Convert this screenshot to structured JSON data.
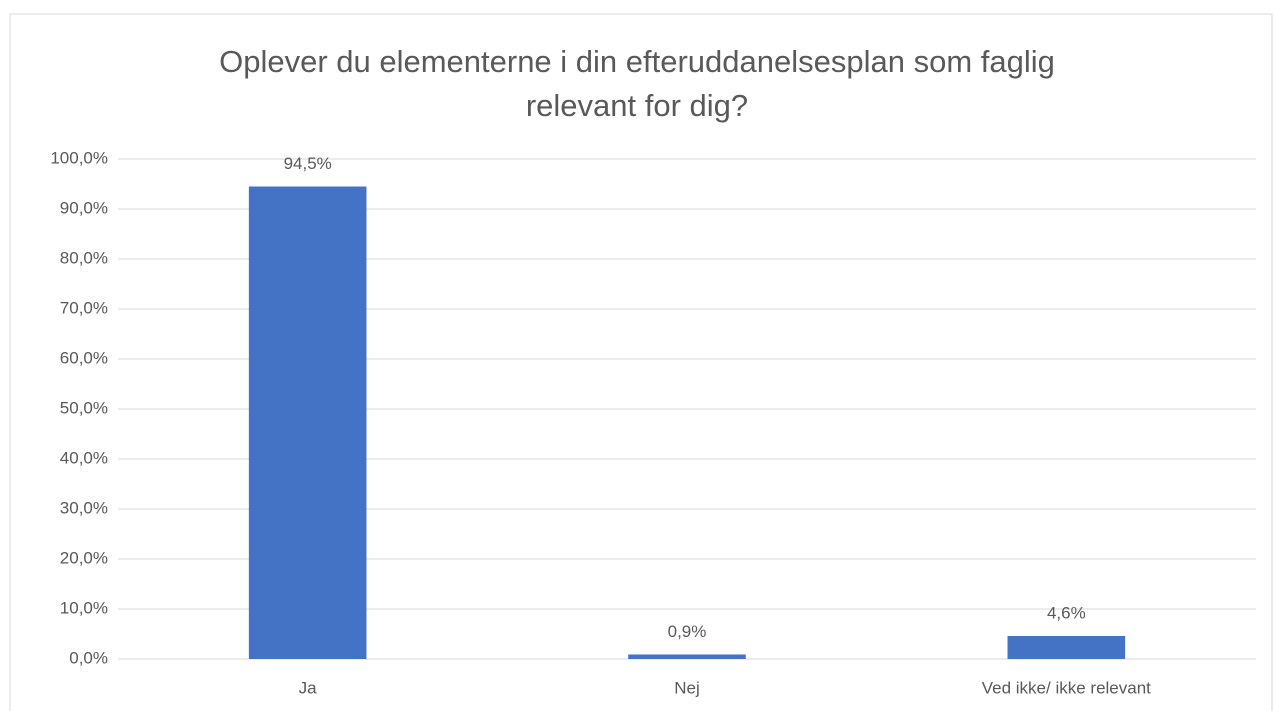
{
  "chart_data": {
    "type": "bar",
    "title": "Oplever du elementerne i din efteruddanelsesplan som faglig relevant for dig?",
    "categories": [
      "Ja",
      "Nej",
      "Ved ikke/ ikke relevant"
    ],
    "values": [
      94.5,
      0.9,
      4.6
    ],
    "value_labels": [
      "94,5%",
      "0,9%",
      "4,6%"
    ],
    "color": "#4472c4",
    "ylim": [
      0,
      100
    ],
    "yticks": [
      {
        "value": 0,
        "label": "0,0%"
      },
      {
        "value": 10,
        "label": "10,0%"
      },
      {
        "value": 20,
        "label": "20,0%"
      },
      {
        "value": 30,
        "label": "30,0%"
      },
      {
        "value": 40,
        "label": "40,0%"
      },
      {
        "value": 50,
        "label": "50,0%"
      },
      {
        "value": 60,
        "label": "60,0%"
      },
      {
        "value": 70,
        "label": "70,0%"
      },
      {
        "value": 80,
        "label": "80,0%"
      },
      {
        "value": 90,
        "label": "90,0%"
      },
      {
        "value": 100,
        "label": "100,0%"
      }
    ],
    "grid": true
  }
}
